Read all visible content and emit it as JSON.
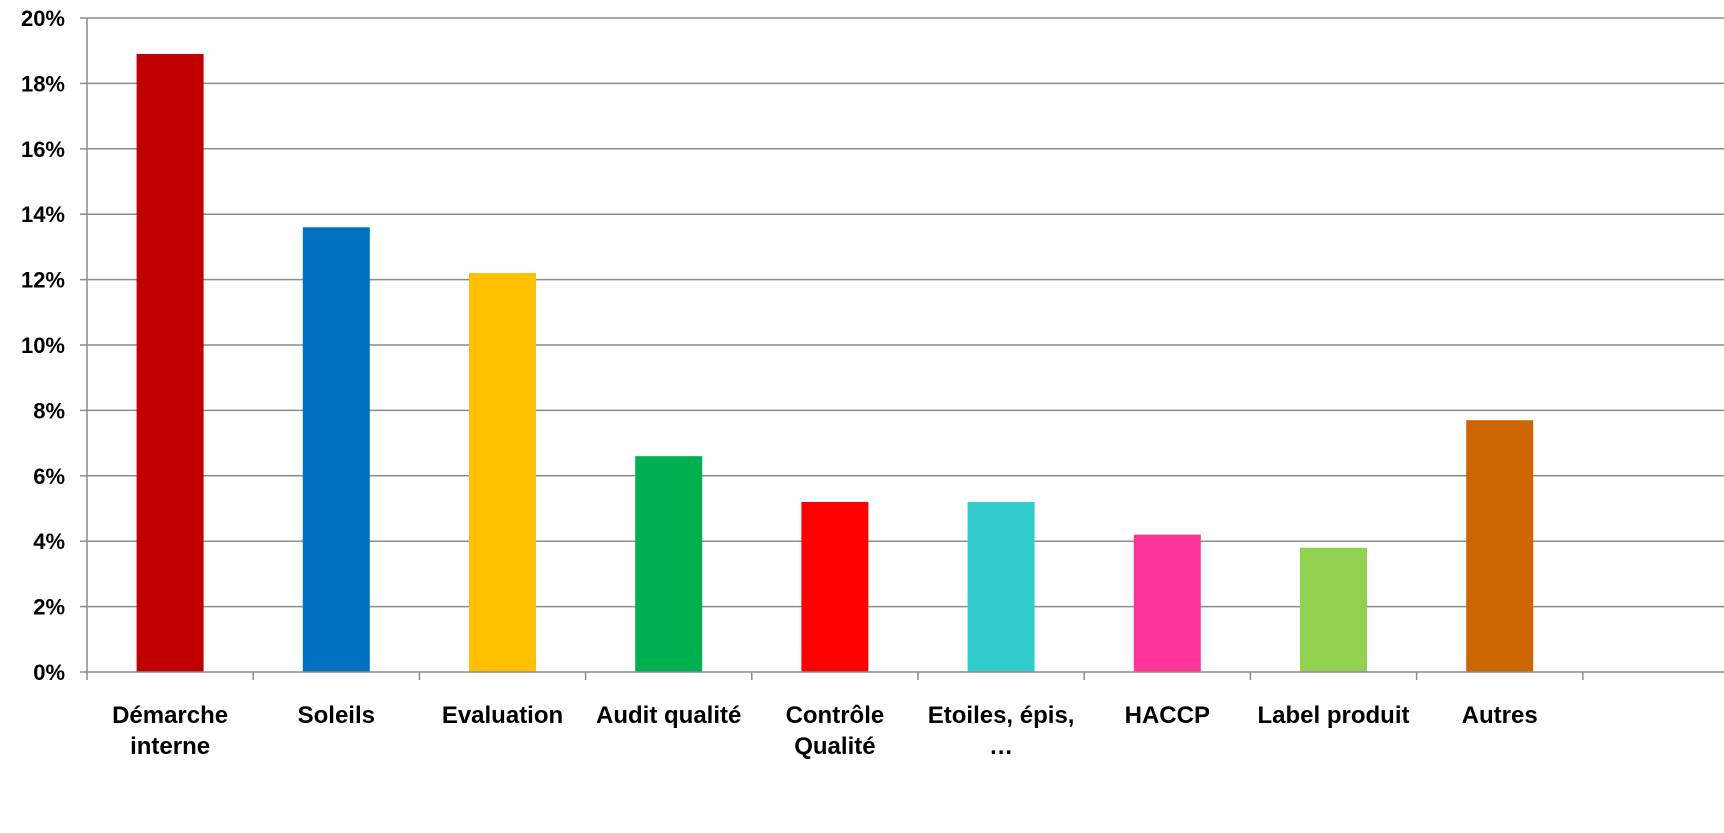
{
  "chart_data": {
    "type": "bar",
    "categories": [
      [
        "Démarche",
        "interne"
      ],
      [
        "Soleils"
      ],
      [
        "Evaluation"
      ],
      [
        "Audit qualité"
      ],
      [
        "Contrôle",
        "Qualité"
      ],
      [
        "Etoiles, épis,",
        "…"
      ],
      [
        "HACCP"
      ],
      [
        "Label produit"
      ],
      [
        "Autres"
      ]
    ],
    "values": [
      18.9,
      13.6,
      12.2,
      6.6,
      5.2,
      5.2,
      4.2,
      3.8,
      7.7
    ],
    "colors": [
      "#C00000",
      "#0070C0",
      "#FFC000",
      "#00B050",
      "#FF0000",
      "#33CCCC",
      "#FF3399",
      "#92D050",
      "#CC6600"
    ],
    "ylim": [
      0,
      20
    ],
    "ytick_step": 2,
    "ytick_suffix": "%",
    "grid": true,
    "title": "",
    "xlabel": "",
    "ylabel": ""
  }
}
